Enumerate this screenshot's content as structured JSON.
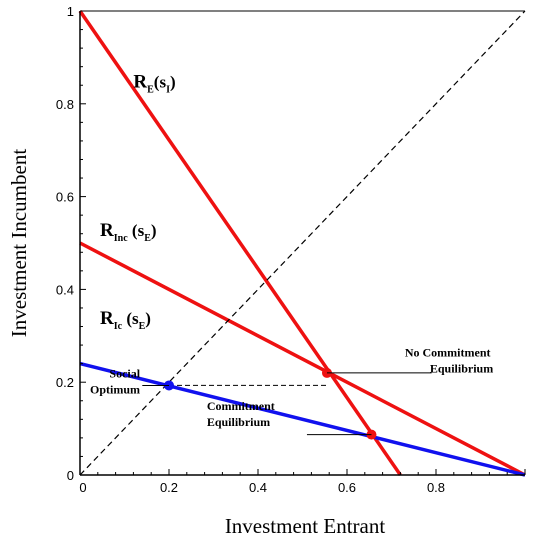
{
  "chart_data": {
    "type": "line",
    "xlabel": "Investment Entrant",
    "ylabel": "Investment Incumbent",
    "xlim": [
      0,
      1
    ],
    "ylim": [
      0,
      1
    ],
    "xticks": [
      {
        "value": 0,
        "label": "0"
      },
      {
        "value": 0.2,
        "label": "0.2"
      },
      {
        "value": 0.4,
        "label": "0.4"
      },
      {
        "value": 0.6,
        "label": "0.6"
      },
      {
        "value": 0.8,
        "label": "0.8"
      }
    ],
    "yticks": [
      {
        "value": 0,
        "label": "0"
      },
      {
        "value": 0.2,
        "label": "0.2"
      },
      {
        "value": 0.4,
        "label": "0.4"
      },
      {
        "value": 0.6,
        "label": "0.6"
      },
      {
        "value": 0.8,
        "label": "0.8"
      },
      {
        "value": 1,
        "label": "1"
      }
    ],
    "series": [
      {
        "color": "#ee1111",
        "x": [
          0,
          0.72
        ],
        "y": [
          1,
          0
        ]
      },
      {
        "color": "#ee1111",
        "x": [
          0,
          1
        ],
        "y": [
          0.5,
          0
        ]
      },
      {
        "color": "#1111ee",
        "x": [
          0,
          1
        ],
        "y": [
          0.24,
          0
        ]
      },
      {
        "color": "#000000",
        "dashed": true,
        "x": [
          0,
          1
        ],
        "y": [
          0,
          1
        ]
      }
    ],
    "curve_labels": [
      {
        "main": "R",
        "sub1": "E",
        "mid": "(s",
        "sub2": "I",
        "end": ")",
        "x": 0.12,
        "y": 0.835
      },
      {
        "main": "R",
        "sub1": "Inc",
        "mid": " (s",
        "sub2": "E",
        "end": ")",
        "x": 0.045,
        "y": 0.515
      },
      {
        "main": "R",
        "sub1": "Ic",
        "mid": " (s",
        "sub2": "E",
        "end": ")",
        "x": 0.045,
        "y": 0.325
      }
    ],
    "points": [
      {
        "name": "social-optimum",
        "x": 0.2,
        "y": 0.193,
        "color": "#1111ee"
      },
      {
        "name": "no-commitment-equilibrium",
        "x": 0.555,
        "y": 0.22,
        "color": "#ee1111"
      },
      {
        "name": "commitment-equilibrium",
        "x": 0.655,
        "y": 0.087,
        "color": "#ee1111"
      }
    ],
    "annotations": [
      {
        "name": "no-commitment-equilibrium-label",
        "lines": [
          "No Commitment",
          "Equilibrium"
        ],
        "align": "start",
        "tx": 0.73,
        "ty": 0.255,
        "line": [
          0.555,
          0.22,
          0.79,
          0.22
        ]
      },
      {
        "name": "social-optimum-label",
        "lines": [
          "Social",
          "Optimum"
        ],
        "align": "end",
        "tx": 0.135,
        "ty": 0.21,
        "line": [
          0.2,
          0.193,
          0.14,
          0.193
        ]
      },
      {
        "name": "commitment-equilibrium-label",
        "lines": [
          "Commitment",
          "Equilibrium"
        ],
        "align": "start",
        "tx": 0.285,
        "ty": 0.14,
        "line": [
          0.655,
          0.087,
          0.51,
          0.087
        ]
      }
    ],
    "guide_lines": [
      {
        "dashed": true,
        "x": [
          0.2,
          0.555
        ],
        "y": [
          0.193,
          0.193
        ]
      }
    ]
  }
}
